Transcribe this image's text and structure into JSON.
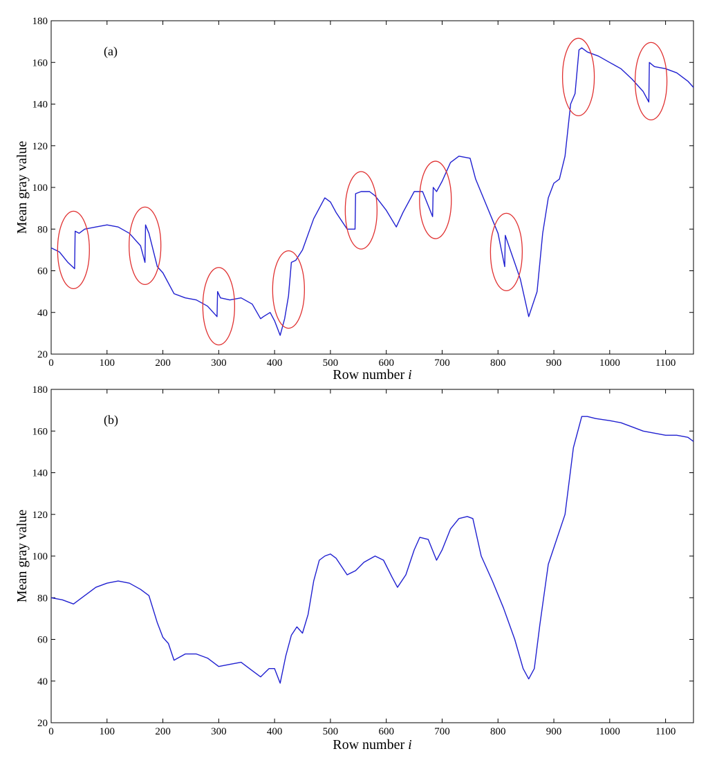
{
  "chart_data": [
    {
      "type": "line",
      "panel_label": "(a)",
      "xlabel": "Row number",
      "xlabel_var": "i",
      "ylabel": "Mean gray value",
      "xlim": [
        0,
        1150
      ],
      "ylim": [
        20,
        180
      ],
      "xticks": [
        0,
        100,
        200,
        300,
        400,
        500,
        600,
        700,
        800,
        900,
        1000,
        1100
      ],
      "yticks": [
        20,
        40,
        60,
        80,
        100,
        120,
        140,
        160,
        180
      ],
      "grid": false,
      "series_color": "#1f1fd0",
      "marker_color": "#e03030",
      "x": [
        0,
        15,
        30,
        42,
        43,
        50,
        60,
        80,
        100,
        120,
        140,
        160,
        168,
        169,
        175,
        190,
        200,
        220,
        240,
        260,
        280,
        297,
        298,
        303,
        320,
        340,
        360,
        375,
        380,
        392,
        400,
        410,
        418,
        425,
        430,
        438,
        450,
        470,
        490,
        500,
        510,
        530,
        544,
        545,
        555,
        570,
        580,
        600,
        618,
        630,
        650,
        665,
        683,
        684,
        690,
        700,
        715,
        730,
        750,
        760,
        780,
        800,
        812,
        813,
        822,
        840,
        855,
        870,
        880,
        890,
        900,
        910,
        920,
        930,
        938,
        945,
        950,
        960,
        980,
        1000,
        1020,
        1040,
        1060,
        1070,
        1071,
        1080,
        1100,
        1120,
        1140,
        1150
      ],
      "y": [
        71,
        69,
        64,
        61,
        79,
        78,
        80,
        81,
        82,
        81,
        78,
        72,
        64,
        82,
        78,
        62,
        59,
        49,
        47,
        46,
        43,
        38,
        50,
        47,
        46,
        47,
        44,
        37,
        38,
        40,
        36,
        29,
        37,
        48,
        64,
        65,
        70,
        85,
        95,
        93,
        88,
        80,
        80,
        97,
        98,
        98,
        96,
        89,
        81,
        88,
        98,
        98,
        86,
        100,
        98,
        103,
        112,
        115,
        114,
        104,
        91,
        78,
        62,
        77,
        70,
        56,
        38,
        50,
        78,
        95,
        102,
        104,
        115,
        140,
        145,
        166,
        167,
        165,
        163,
        160,
        157,
        152,
        146,
        141,
        160,
        158,
        157,
        155,
        151,
        148
      ],
      "markers": [
        {
          "x": 40,
          "y": 70
        },
        {
          "x": 168,
          "y": 72
        },
        {
          "x": 300,
          "y": 43
        },
        {
          "x": 425,
          "y": 51
        },
        {
          "x": 555,
          "y": 89
        },
        {
          "x": 688,
          "y": 94
        },
        {
          "x": 815,
          "y": 69
        },
        {
          "x": 944,
          "y": 153
        },
        {
          "x": 1074,
          "y": 151
        }
      ]
    },
    {
      "type": "line",
      "panel_label": "(b)",
      "xlabel": "Row number",
      "xlabel_var": "i",
      "ylabel": "Mean gray value",
      "xlim": [
        0,
        1150
      ],
      "ylim": [
        20,
        180
      ],
      "xticks": [
        0,
        100,
        200,
        300,
        400,
        500,
        600,
        700,
        800,
        900,
        1000,
        1100
      ],
      "yticks": [
        20,
        40,
        60,
        80,
        100,
        120,
        140,
        160,
        180
      ],
      "grid": false,
      "series_color": "#1f1fd0",
      "x": [
        0,
        20,
        40,
        60,
        80,
        100,
        120,
        140,
        160,
        175,
        190,
        200,
        210,
        220,
        240,
        260,
        280,
        300,
        320,
        340,
        360,
        375,
        390,
        400,
        410,
        420,
        430,
        440,
        450,
        460,
        470,
        480,
        490,
        500,
        510,
        530,
        545,
        560,
        580,
        595,
        610,
        620,
        635,
        650,
        660,
        675,
        690,
        700,
        715,
        730,
        745,
        755,
        770,
        790,
        810,
        830,
        845,
        855,
        865,
        875,
        890,
        905,
        920,
        935,
        950,
        960,
        975,
        1000,
        1020,
        1040,
        1060,
        1080,
        1100,
        1120,
        1140,
        1150
      ],
      "y": [
        80,
        79,
        77,
        81,
        85,
        87,
        88,
        87,
        84,
        81,
        68,
        61,
        58,
        50,
        53,
        53,
        51,
        47,
        48,
        49,
        45,
        42,
        46,
        46,
        39,
        52,
        62,
        66,
        63,
        72,
        88,
        98,
        100,
        101,
        99,
        91,
        93,
        97,
        100,
        98,
        90,
        85,
        91,
        103,
        109,
        108,
        98,
        103,
        113,
        118,
        119,
        118,
        100,
        88,
        75,
        60,
        46,
        41,
        46,
        67,
        96,
        108,
        120,
        152,
        167,
        167,
        166,
        165,
        164,
        162,
        160,
        159,
        158,
        158,
        157,
        155
      ]
    }
  ]
}
